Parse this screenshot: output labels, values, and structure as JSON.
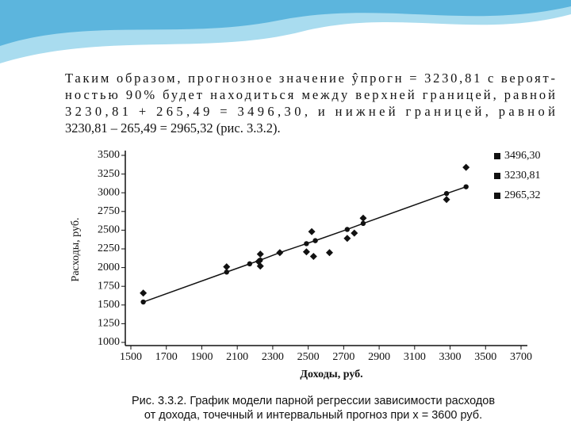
{
  "paragraph": [
    "Таким образом, прогнозное значение ŷпрогн = 3230,81 с вероят-",
    "ностью 90% будет находиться между верхней границей, равной",
    "3230,81 + 265,49 = 3496,30, и нижней границей, равной",
    "3230,81 – 265,49 = 2965,32 (рис. 3.3.2)."
  ],
  "caption": [
    "Рис. 3.3.2. График модели парной регрессии зависимости расходов",
    "от дохода, точечный и интервальный прогноз при x = 3600 руб."
  ],
  "chart_data": {
    "type": "scatter",
    "x_label": "Доходы, руб.",
    "y_label": "Расходы, руб.",
    "xlim": [
      1500,
      3700
    ],
    "xticks": [
      1500,
      1700,
      1900,
      2100,
      2300,
      2500,
      2700,
      2900,
      3100,
      3300,
      3500,
      3700
    ],
    "ylim": [
      1000,
      3500
    ],
    "yticks": [
      1000,
      1250,
      1500,
      1750,
      2000,
      2250,
      2500,
      2750,
      3000,
      3250,
      3500
    ],
    "legend": [
      "3496,30",
      "3230,81",
      "2965,32"
    ],
    "series": [
      {
        "marker": "diamond",
        "color": "#111111",
        "x": [
          1570,
          2040,
          2230,
          2220,
          2230,
          2340,
          2520,
          2490,
          2530,
          2620,
          2720,
          2760,
          2810,
          3390,
          3280
        ],
        "values": [
          1660,
          2010,
          2180,
          2080,
          2020,
          2200,
          2480,
          2210,
          2150,
          2200,
          2390,
          2460,
          2660,
          3340,
          2910
        ]
      },
      {
        "marker": "circle",
        "line": true,
        "color": "#111111",
        "x": [
          1570,
          2040,
          2170,
          2230,
          2340,
          2490,
          2540,
          2720,
          2810,
          3280,
          3390
        ],
        "values": [
          1540,
          1940,
          2050,
          2100,
          2200,
          2320,
          2360,
          2510,
          2590,
          2990,
          3080
        ]
      }
    ]
  }
}
